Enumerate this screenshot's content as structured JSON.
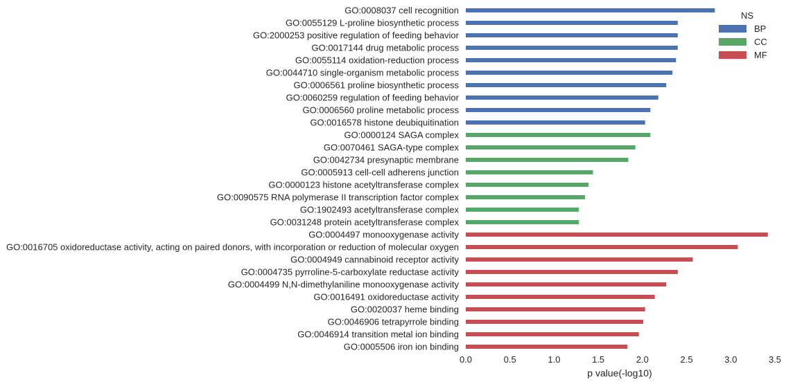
{
  "chart_data": {
    "type": "bar",
    "orientation": "horizontal",
    "xlabel": "p value(-log10)",
    "ylabel": "",
    "xlim": [
      0,
      3.5
    ],
    "xticks": [
      "0.0",
      "0.5",
      "1.0",
      "1.5",
      "2.0",
      "2.5",
      "3.0",
      "3.5"
    ],
    "grid": false,
    "legend": {
      "title": "NS",
      "placement": "top-right",
      "entries": [
        {
          "name": "BP",
          "color": "#4c72b0"
        },
        {
          "name": "CC",
          "color": "#55a868"
        },
        {
          "name": "MF",
          "color": "#c44e52"
        }
      ]
    },
    "categories": [
      "GO:0008037 cell recognition",
      "GO:0055129 L-proline biosynthetic process",
      "GO:2000253 positive regulation of feeding behavior",
      "GO:0017144 drug metabolic process",
      "GO:0055114 oxidation-reduction process",
      "GO:0044710 single-organism metabolic process",
      "GO:0006561 proline biosynthetic process",
      "GO:0060259 regulation of feeding behavior",
      "GO:0006560 proline metabolic process",
      "GO:0016578 histone deubiquitination",
      "GO:0000124 SAGA complex",
      "GO:0070461 SAGA-type complex",
      "GO:0042734 presynaptic membrane",
      "GO:0005913 cell-cell adherens junction",
      "GO:0000123 histone acetyltransferase complex",
      "GO:0090575 RNA polymerase II transcription factor complex",
      "GO:1902493 acetyltransferase complex",
      "GO:0031248 protein acetyltransferase complex",
      "GO:0004497 monooxygenase activity",
      "GO:0016705 oxidoreductase activity, acting on paired donors, with incorporation or reduction of molecular oxygen",
      "GO:0004949 cannabinoid receptor activity",
      "GO:0004735 pyrroline-5-carboxylate reductase activity",
      "GO:0004499 N,N-dimethylaniline monooxygenase activity",
      "GO:0016491 oxidoreductase activity",
      "GO:0020037 heme binding",
      "GO:0046906 tetrapyrrole binding",
      "GO:0046914 transition metal ion binding",
      "GO:0005506 iron ion binding"
    ],
    "series": [
      {
        "name": "BP",
        "values": [
          2.82,
          2.4,
          2.4,
          2.4,
          2.38,
          2.34,
          2.27,
          2.18,
          2.09,
          2.03,
          null,
          null,
          null,
          null,
          null,
          null,
          null,
          null,
          null,
          null,
          null,
          null,
          null,
          null,
          null,
          null,
          null,
          null
        ]
      },
      {
        "name": "CC",
        "values": [
          null,
          null,
          null,
          null,
          null,
          null,
          null,
          null,
          null,
          null,
          2.09,
          1.92,
          1.84,
          1.44,
          1.39,
          1.35,
          1.28,
          1.28,
          null,
          null,
          null,
          null,
          null,
          null,
          null,
          null,
          null,
          null
        ]
      },
      {
        "name": "MF",
        "values": [
          null,
          null,
          null,
          null,
          null,
          null,
          null,
          null,
          null,
          null,
          null,
          null,
          null,
          null,
          null,
          null,
          null,
          null,
          3.42,
          3.08,
          2.57,
          2.4,
          2.27,
          2.14,
          2.03,
          2.01,
          1.96,
          1.83
        ]
      }
    ]
  }
}
